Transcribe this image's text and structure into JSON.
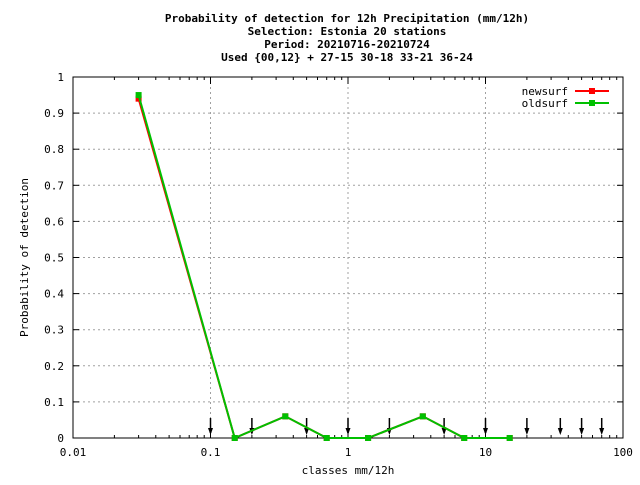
{
  "chart_data": {
    "type": "line",
    "title_lines": [
      "Probability of detection  for 12h Precipitation (mm/12h)",
      "Selection: Estonia     20 stations",
      "Period: 20210716-20210724",
      "Used {00,12} + 27-15 30-18 33-21 36-24"
    ],
    "xlabel": "classes mm/12h",
    "ylabel": "Probability of detection",
    "x_scale": "log",
    "xlim": [
      0.01,
      100
    ],
    "ylim": [
      0,
      1
    ],
    "x_ticks": [
      0.01,
      0.1,
      1,
      10,
      100
    ],
    "x_tick_labels": [
      "0.01",
      "0.1",
      "1",
      "10",
      "100"
    ],
    "y_ticks": [
      0,
      0.1,
      0.2,
      0.3,
      0.4,
      0.5,
      0.6,
      0.7,
      0.8,
      0.9,
      1
    ],
    "y_tick_labels": [
      "0",
      "0.1",
      "0.2",
      "0.3",
      "0.4",
      "0.5",
      "0.6",
      "0.7",
      "0.8",
      "0.9",
      "1"
    ],
    "grid": true,
    "legend_position": "top-right",
    "series": [
      {
        "name": "newsurf",
        "color": "#ff0000",
        "x": [
          0.03,
          0.15,
          0.35,
          0.7,
          1.4,
          3.5,
          7,
          15
        ],
        "y": [
          0.94,
          0.0,
          0.06,
          0.0,
          0.0,
          0.06,
          0.0,
          0.0
        ]
      },
      {
        "name": "oldsurf",
        "color": "#00c000",
        "x": [
          0.03,
          0.15,
          0.35,
          0.7,
          1.4,
          3.5,
          7,
          15
        ],
        "y": [
          0.95,
          0.0,
          0.06,
          0.0,
          0.0,
          0.06,
          0.0,
          0.0
        ]
      }
    ],
    "class_arrows_x": [
      0.1,
      0.2,
      0.5,
      1,
      2,
      5,
      10,
      20,
      35,
      50,
      70
    ]
  }
}
